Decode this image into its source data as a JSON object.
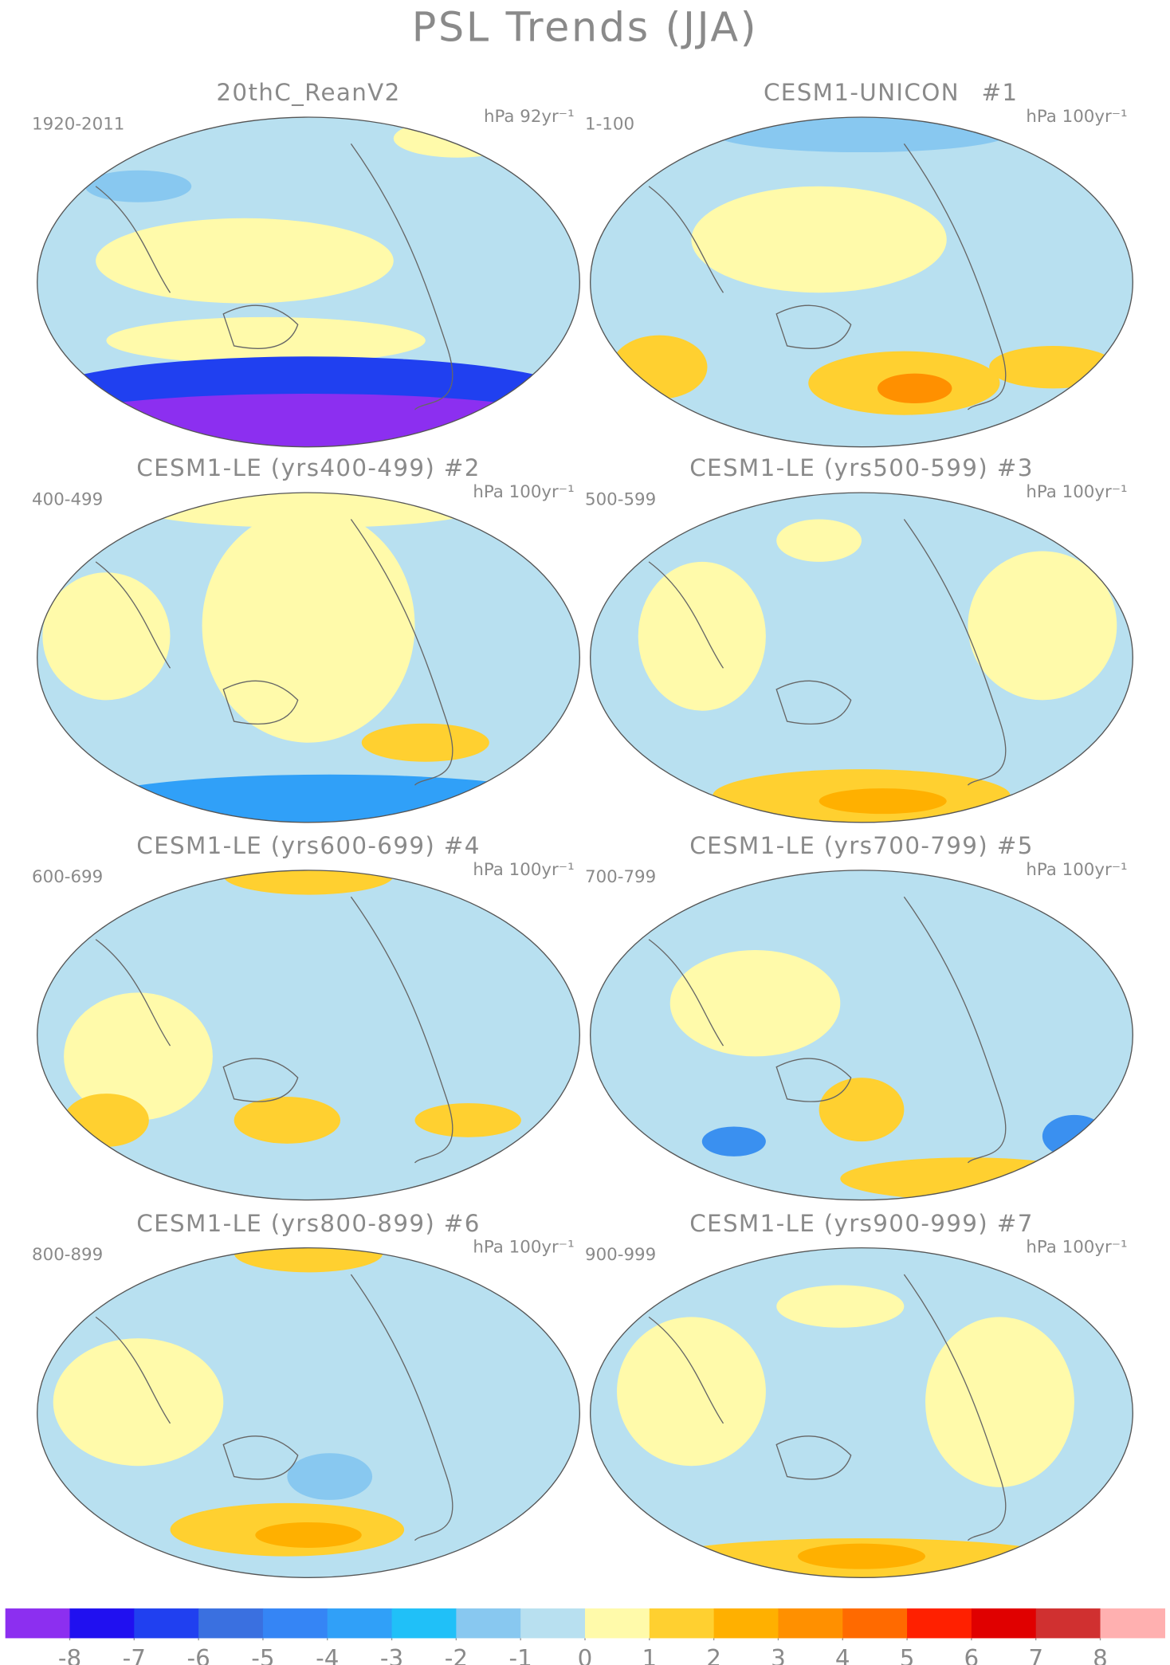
{
  "header": {
    "title": "PSL Trends (JJA)"
  },
  "panels": [
    {
      "title": "20thC_ReanV2",
      "period": "1920-2011",
      "units": "hPa 92yr⁻¹"
    },
    {
      "title": "CESM1-UNICON",
      "number": "#1",
      "period": "1-100",
      "units": "hPa 100yr⁻¹"
    },
    {
      "title": "CESM1-LE (yrs400-499) #2",
      "period": "400-499",
      "units": "hPa 100yr⁻¹"
    },
    {
      "title": "CESM1-LE (yrs500-599) #3",
      "period": "500-599",
      "units": "hPa 100yr⁻¹"
    },
    {
      "title": "CESM1-LE (yrs600-699) #4",
      "period": "600-699",
      "units": "hPa 100yr⁻¹"
    },
    {
      "title": "CESM1-LE (yrs700-799) #5",
      "period": "700-799",
      "units": "hPa 100yr⁻¹"
    },
    {
      "title": "CESM1-LE (yrs800-899) #6",
      "period": "800-899",
      "units": "hPa 100yr⁻¹"
    },
    {
      "title": "CESM1-LE (yrs900-999) #7",
      "period": "900-999",
      "units": "hPa 100yr⁻¹"
    }
  ],
  "colorbar": {
    "colors": [
      "#8c2ff0",
      "#2010f0",
      "#2040f0",
      "#3a70e0",
      "#3585f5",
      "#30a0f8",
      "#20c0f8",
      "#88c8f0",
      "#b8e0f0",
      "#fffaaa",
      "#ffd030",
      "#ffb000",
      "#ff9000",
      "#ff6a00",
      "#ff2000",
      "#e00000",
      "#d03030",
      "#ffb0b0"
    ],
    "ticks": [
      -8,
      -7,
      -6,
      -5,
      -4,
      -3,
      -2,
      -1,
      0,
      1,
      2,
      3,
      4,
      5,
      6,
      7,
      8
    ]
  }
}
